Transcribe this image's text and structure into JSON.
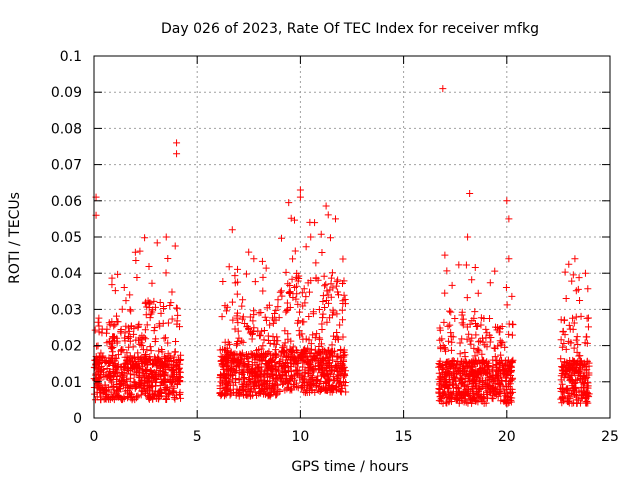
{
  "chart_data": {
    "type": "scatter",
    "title": "Day 026 of 2023, Rate Of TEC Index for receiver mfkg",
    "xlabel": "GPS time / hours",
    "ylabel": "ROTI / TECUs",
    "xlim": [
      0,
      25
    ],
    "ylim": [
      0,
      0.1
    ],
    "x_ticks": [
      "0",
      "5",
      "10",
      "15",
      "20",
      "25"
    ],
    "y_ticks": [
      "0",
      "0.01",
      "0.02",
      "0.03",
      "0.04",
      "0.05",
      "0.06",
      "0.07",
      "0.08",
      "0.09",
      "0.1"
    ],
    "grid": true,
    "marker": "+",
    "color": "#ff0000",
    "segments": [
      {
        "x_start": 0.0,
        "x_end": 2.0,
        "base": 0.011,
        "peak": 0.04
      },
      {
        "x_start": 2.0,
        "x_end": 4.2,
        "base": 0.011,
        "peak": 0.05
      },
      {
        "x_start": 6.1,
        "x_end": 9.0,
        "base": 0.012,
        "peak": 0.047
      },
      {
        "x_start": 9.0,
        "x_end": 12.2,
        "base": 0.013,
        "peak": 0.06
      },
      {
        "x_start": 16.7,
        "x_end": 18.3,
        "base": 0.01,
        "peak": 0.045
      },
      {
        "x_start": 18.3,
        "x_end": 20.3,
        "base": 0.01,
        "peak": 0.043
      },
      {
        "x_start": 22.6,
        "x_end": 24.0,
        "base": 0.01,
        "peak": 0.043
      }
    ],
    "outliers": [
      {
        "x": 16.9,
        "y": 0.091
      },
      {
        "x": 4.0,
        "y": 0.076
      },
      {
        "x": 4.0,
        "y": 0.073
      },
      {
        "x": 18.2,
        "y": 0.062
      },
      {
        "x": 10.0,
        "y": 0.063
      },
      {
        "x": 10.0,
        "y": 0.061
      },
      {
        "x": 0.1,
        "y": 0.061
      },
      {
        "x": 20.0,
        "y": 0.06
      },
      {
        "x": 0.1,
        "y": 0.056
      },
      {
        "x": 20.1,
        "y": 0.055
      },
      {
        "x": 18.1,
        "y": 0.05
      },
      {
        "x": 6.7,
        "y": 0.052
      },
      {
        "x": 3.5,
        "y": 0.05
      },
      {
        "x": 11.7,
        "y": 0.055
      },
      {
        "x": 10.5,
        "y": 0.05
      },
      {
        "x": 17.0,
        "y": 0.045
      },
      {
        "x": 20.1,
        "y": 0.044
      },
      {
        "x": 23.3,
        "y": 0.044
      }
    ]
  }
}
